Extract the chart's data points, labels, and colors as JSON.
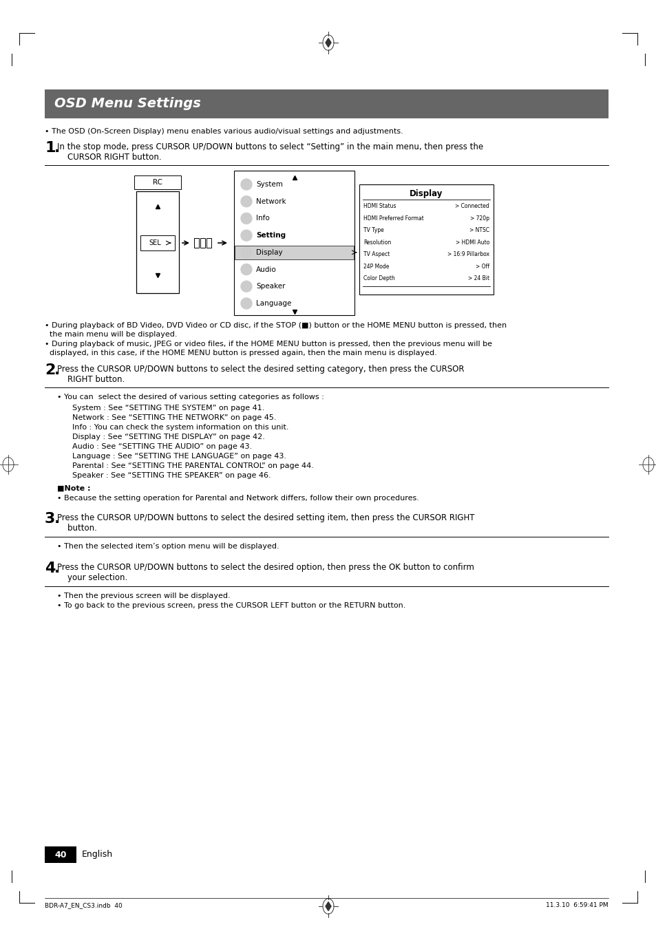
{
  "bg_color": "#ffffff",
  "title_bg_color": "#666666",
  "title_text": "OSD Menu Settings",
  "title_text_color": "#ffffff",
  "bullet_intro": "• The OSD (On-Screen Display) menu enables various audio/visual settings and adjustments.",
  "bullet1_a": "• During playback of BD Video, DVD Video or CD disc, if the STOP (■) button or the HOME MENU button is pressed, then",
  "bullet1_a2": "  the main menu will be displayed.",
  "bullet1_b": "• During playback of music, JPEG or video files, if the HOME MENU button is pressed, then the previous menu will be",
  "bullet1_b2": "  displayed, in this case, if the HOME MENU button is pressed again, then the main menu is displayed.",
  "step2_bullet": "• You can  select the desired of various setting categories as follows :",
  "step2_list": [
    "System : See “SETTING THE SYSTEM” on page 41.",
    "Network : See “SETTING THE NETWORK” on page 45.",
    "Info : You can check the system information on this unit.",
    "Display : See “SETTING THE DISPLAY” on page 42.",
    "Audio : See “SETTING THE AUDIO” on page 43.",
    "Language : See “SETTING THE LANGUAGE” on page 43.",
    "Parental : See “SETTING THE PARENTAL CONTROL” on page 44.",
    "Speaker : See “SETTING THE SPEAKER” on page 46."
  ],
  "note_header": "■Note :",
  "note_text": "• Because the setting operation for Parental and Network differs, follow their own procedures.",
  "step3_bullet": "• Then the selected item’s option menu will be displayed.",
  "step4_bullet1": "• Then the previous screen will be displayed.",
  "step4_bullet2": "• To go back to the previous screen, press the CURSOR LEFT button or the RETURN button.",
  "page_num": "40",
  "page_lang": "English",
  "footer_left": "BDR-A7_EN_CS3.indb  40",
  "footer_right": "11.3.10  6:59:41 PM",
  "menu_items": [
    "System",
    "Network",
    "Info",
    "Setting",
    "Display",
    "Audio",
    "Speaker",
    "Language"
  ],
  "disp_items_left": [
    "HDMI Status",
    "HDMI Preferred Format",
    "TV Type",
    "Resolution",
    "TV Aspect",
    "24P Mode",
    "Color Depth"
  ],
  "disp_items_right": [
    "> Connected",
    "> 720p",
    "> NTSC",
    "> HDMI Auto",
    "> 16:9 Pillarbox",
    "> Off",
    "> 24 Bit"
  ]
}
